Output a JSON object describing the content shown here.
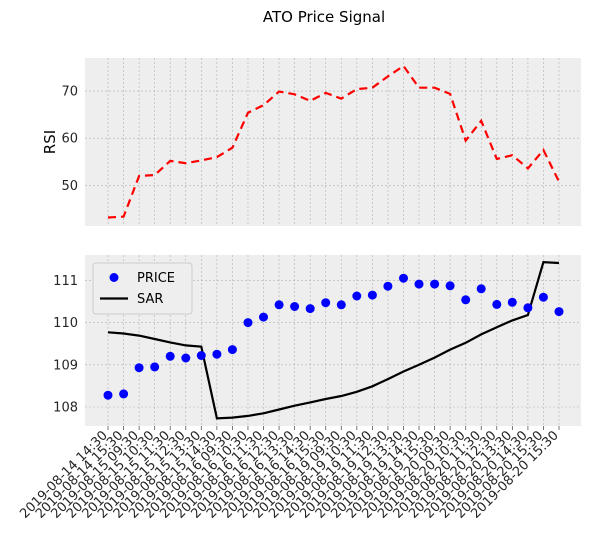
{
  "figure": {
    "title": "ATO Price Signal"
  },
  "colors": {
    "panel_bg": "#eeeeee",
    "grid": "#b2b2b2",
    "rsi_line": "#ff0000",
    "price_marker": "#0000ff",
    "sar_line": "#000000"
  },
  "chart_data": [
    {
      "type": "line",
      "title": "",
      "xlabel": "",
      "ylabel": "RSI",
      "ylim": [
        41.4,
        77.0
      ],
      "yticks": [
        50,
        60,
        70
      ],
      "grid": true,
      "line_style": "dashed",
      "series": [
        {
          "values": [
            43.2,
            43.4,
            52.0,
            52.2,
            55.2,
            54.7,
            55.3,
            56.0,
            58.0,
            65.4,
            67.0,
            69.9,
            69.3,
            67.9,
            69.6,
            68.4,
            70.4,
            70.7,
            73.1,
            75.3,
            70.7,
            70.7,
            69.4,
            59.5,
            63.7,
            55.6,
            56.4,
            53.6,
            57.5,
            50.8
          ]
        }
      ]
    },
    {
      "type": "scatter",
      "title": "",
      "xlabel": "",
      "ylabel": "",
      "ylim": [
        107.55,
        111.6
      ],
      "yticks": [
        108,
        109,
        110,
        111
      ],
      "grid": true,
      "legend_position": "top-left",
      "x": [
        "2019-08-14 14:30",
        "2019-08-14 15:30",
        "2019-08-15 09:30",
        "2019-08-15 10:30",
        "2019-08-15 11:30",
        "2019-08-15 12:30",
        "2019-08-15 13:30",
        "2019-08-15 14:30",
        "2019-08-16 09:30",
        "2019-08-16 10:30",
        "2019-08-16 11:30",
        "2019-08-16 12:30",
        "2019-08-16 13:30",
        "2019-08-16 14:30",
        "2019-08-16 15:30",
        "2019-08-19 09:30",
        "2019-08-19 10:30",
        "2019-08-19 11:30",
        "2019-08-19 12:30",
        "2019-08-19 13:30",
        "2019-08-19 14:30",
        "2019-08-19 15:30",
        "2019-08-20 09:30",
        "2019-08-20 10:30",
        "2019-08-20 11:30",
        "2019-08-20 12:30",
        "2019-08-20 13:30",
        "2019-08-20 14:30",
        "2019-08-20 15:30",
        "2019-08-20 15:30"
      ],
      "x_tick_labels": [
        "2019-08-14 14:30",
        "2019-08-14 15:30",
        "2019-08-15 09:30",
        "2019-08-15 10:30",
        "2019-08-15 11:30",
        "2019-08-15 12:30",
        "2019-08-15 13:30",
        "2019-08-15 14:30",
        "2019-08-16 09:30",
        "2019-08-16 10:30",
        "2019-08-16 11:30",
        "2019-08-16 12:30",
        "2019-08-16 13:30",
        "2019-08-16 14:30",
        "2019-08-16 15:30",
        "2019-08-19 09:30",
        "2019-08-19 10:30",
        "2019-08-19 11:30",
        "2019-08-19 12:30",
        "2019-08-19 13:30",
        "2019-08-19 14:30",
        "2019-08-19 15:30",
        "2019-08-20 09:30",
        "2019-08-20 10:30",
        "2019-08-20 11:30",
        "2019-08-20 12:30",
        "2019-08-20 13:30",
        "2019-08-20 14:30",
        "2019-08-20 15:30",
        "2019-08-20 15:30"
      ],
      "series": [
        {
          "name": "PRICE",
          "kind": "scatter",
          "values": [
            108.28,
            108.31,
            108.93,
            108.95,
            109.2,
            109.16,
            109.22,
            109.25,
            109.36,
            110.0,
            110.13,
            110.42,
            110.38,
            110.33,
            110.47,
            110.42,
            110.63,
            110.65,
            110.86,
            111.05,
            110.91,
            110.91,
            110.87,
            110.54,
            110.8,
            110.43,
            110.48,
            110.35,
            110.6,
            110.26
          ]
        },
        {
          "name": "SAR",
          "kind": "line",
          "values": [
            109.77,
            109.74,
            109.69,
            109.61,
            109.53,
            109.46,
            109.43,
            107.73,
            107.75,
            107.79,
            107.85,
            107.94,
            108.03,
            108.11,
            108.19,
            108.26,
            108.36,
            108.49,
            108.66,
            108.84,
            109.0,
            109.17,
            109.36,
            109.52,
            109.72,
            109.89,
            110.05,
            110.18,
            111.43,
            111.41
          ]
        }
      ]
    }
  ]
}
